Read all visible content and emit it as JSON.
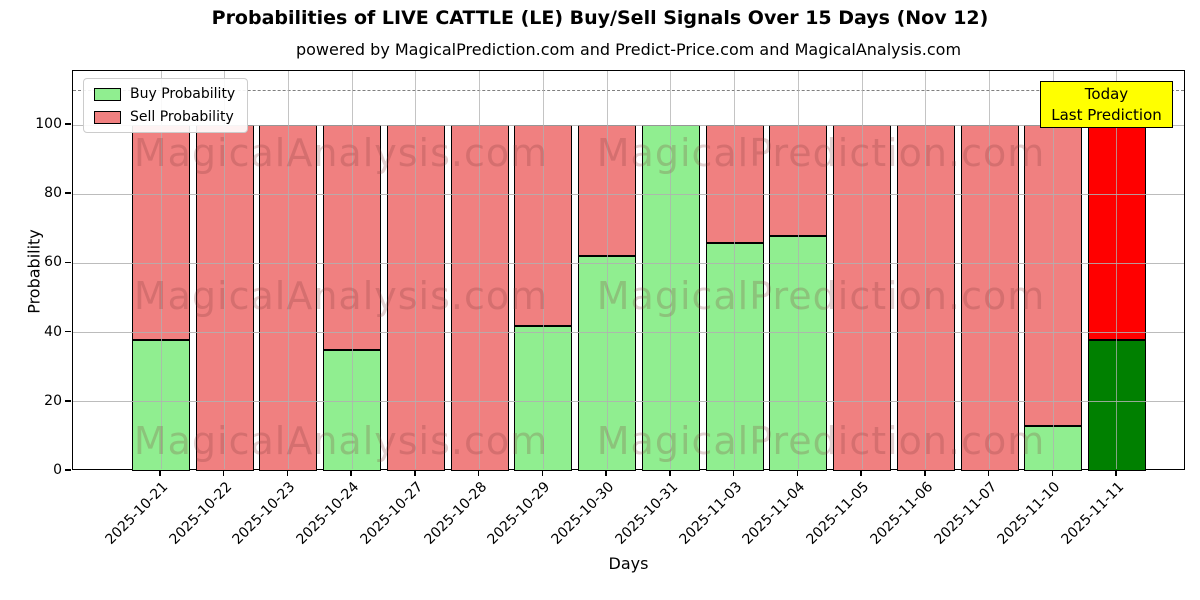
{
  "figure": {
    "title": "Probabilities of LIVE CATTLE (LE) Buy/Sell Signals Over 15 Days (Nov 12)",
    "subtitle": "powered by MagicalPrediction.com and Predict-Price.com and MagicalAnalysis.com"
  },
  "chart_data": {
    "type": "bar",
    "stacked": true,
    "title": "Probabilities of LIVE CATTLE (LE) Buy/Sell Signals Over 15 Days (Nov 12)",
    "xlabel": "Days",
    "ylabel": "Probability",
    "categories": [
      "2025-10-21",
      "2025-10-22",
      "2025-10-23",
      "2025-10-24",
      "2025-10-27",
      "2025-10-28",
      "2025-10-29",
      "2025-10-30",
      "2025-10-31",
      "2025-11-03",
      "2025-11-04",
      "2025-11-05",
      "2025-11-06",
      "2025-11-07",
      "2025-11-10",
      "2025-11-11"
    ],
    "series": [
      {
        "name": "Buy Probability",
        "color": "#90ee90",
        "today_color": "#008000",
        "values": [
          38,
          0,
          0,
          35,
          0,
          0,
          42,
          62,
          100,
          66,
          68,
          0,
          0,
          0,
          13,
          38
        ]
      },
      {
        "name": "Sell Probability",
        "color": "#f08080",
        "today_color": "#ff0000",
        "values": [
          62,
          100,
          100,
          65,
          100,
          100,
          58,
          38,
          0,
          34,
          32,
          100,
          100,
          100,
          87,
          62
        ]
      }
    ],
    "yticks": [
      0,
      20,
      40,
      60,
      80,
      100
    ],
    "ylim": [
      0,
      115.6
    ],
    "grid": true,
    "legend_position": "upper left",
    "dashed_line_y": 110,
    "bar_edge_color": "#000000",
    "today_index": 15
  },
  "annotation": {
    "line1": "Today",
    "line2": "Last Prediction",
    "bg_color": "#ffff00",
    "border_color": "#000000"
  },
  "watermarks": {
    "left": "MagicalAnalysis.com",
    "right": "MagicalPrediction.com"
  }
}
